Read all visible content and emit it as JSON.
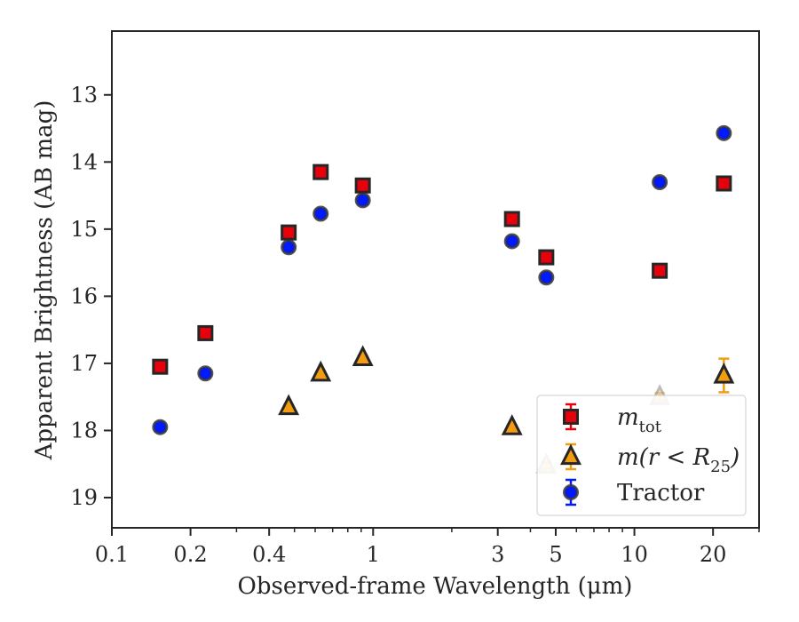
{
  "chart_data": {
    "type": "scatter",
    "xlabel": "Observed-frame Wavelength (μm)",
    "ylabel": "Apparent Brightness (AB mag)",
    "xscale": "log",
    "xlim": [
      0.1,
      30
    ],
    "ylim": [
      19.45,
      12.05
    ],
    "y_inverted": true,
    "grid": false,
    "legend_position": "bottom-right",
    "x_ticks": [
      {
        "value": 0.1,
        "label": "0.1"
      },
      {
        "value": 0.2,
        "label": "0.2"
      },
      {
        "value": 0.4,
        "label": "0.4"
      },
      {
        "value": 1,
        "label": "1"
      },
      {
        "value": 3,
        "label": "3"
      },
      {
        "value": 5,
        "label": "5"
      },
      {
        "value": 10,
        "label": "10"
      },
      {
        "value": 20,
        "label": "20"
      }
    ],
    "y_ticks": [
      {
        "value": 13,
        "label": "13"
      },
      {
        "value": 14,
        "label": "14"
      },
      {
        "value": 15,
        "label": "15"
      },
      {
        "value": 16,
        "label": "16"
      },
      {
        "value": 17,
        "label": "17"
      },
      {
        "value": 18,
        "label": "18"
      },
      {
        "value": 19,
        "label": "19"
      }
    ],
    "series": [
      {
        "name": "m_tot",
        "marker": "square",
        "color": "#e8000b",
        "edge": "#262626",
        "errcolor": "#e8000b",
        "points": [
          {
            "x": 0.153,
            "y": 17.05
          },
          {
            "x": 0.228,
            "y": 16.55
          },
          {
            "x": 0.475,
            "y": 15.05
          },
          {
            "x": 0.63,
            "y": 14.15
          },
          {
            "x": 0.913,
            "y": 14.35
          },
          {
            "x": 3.4,
            "y": 14.85
          },
          {
            "x": 4.6,
            "y": 15.42
          },
          {
            "x": 12.5,
            "y": 15.62
          },
          {
            "x": 22.0,
            "y": 14.32
          }
        ]
      },
      {
        "name": "m(r < R25)",
        "marker": "triangle",
        "color": "#f39c12",
        "edge": "#262626",
        "errcolor": "#f39c12",
        "points": [
          {
            "x": 0.475,
            "y": 17.65,
            "err": 0.03,
            "faded": false
          },
          {
            "x": 0.63,
            "y": 17.15,
            "err": 0.03,
            "faded": false
          },
          {
            "x": 0.913,
            "y": 16.92,
            "err": 0.03,
            "faded": false
          },
          {
            "x": 3.4,
            "y": 17.95,
            "err": 0.03,
            "faded": false
          },
          {
            "x": 4.6,
            "y": 18.52,
            "err": 0.05,
            "faded": true
          },
          {
            "x": 12.5,
            "y": 17.5,
            "err": 0.06,
            "faded": true
          },
          {
            "x": 22.0,
            "y": 17.18,
            "err": 0.25,
            "faded": false
          }
        ]
      },
      {
        "name": "Tractor",
        "marker": "circle",
        "color": "#0019ff",
        "edge": "#3a3a3a",
        "errcolor": "#0019ff",
        "points": [
          {
            "x": 0.153,
            "y": 17.95,
            "err": 0.06
          },
          {
            "x": 0.228,
            "y": 17.15,
            "err": 0.06
          },
          {
            "x": 0.475,
            "y": 15.27,
            "err": 0.06
          },
          {
            "x": 0.63,
            "y": 14.77,
            "err": 0.06
          },
          {
            "x": 0.913,
            "y": 14.57,
            "err": 0.06
          },
          {
            "x": 3.4,
            "y": 15.18,
            "err": 0.06
          },
          {
            "x": 4.6,
            "y": 15.72,
            "err": 0.06
          },
          {
            "x": 12.5,
            "y": 14.3,
            "err": 0.06
          },
          {
            "x": 22.0,
            "y": 13.57,
            "err": 0.06
          }
        ]
      }
    ]
  },
  "legend": [
    {
      "key": "m_tot",
      "base": "m",
      "sub": "tot"
    },
    {
      "key": "m(r < R25)",
      "base": "m(r < R",
      "sub": "25",
      "tail": ")"
    },
    {
      "key": "Tractor",
      "text": "Tractor"
    }
  ]
}
